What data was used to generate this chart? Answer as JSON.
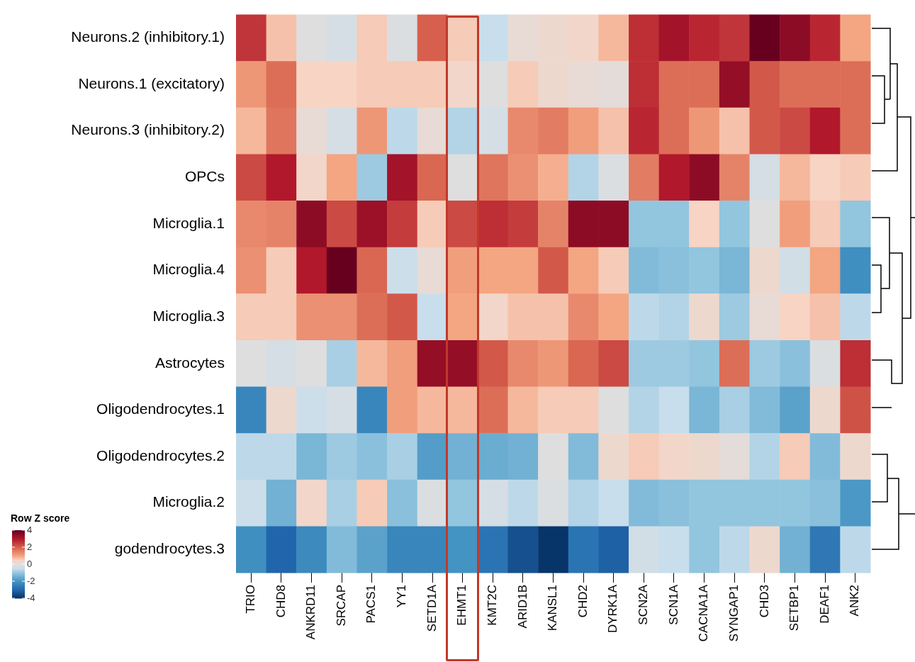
{
  "chart_data": {
    "type": "heatmap",
    "clabel": "Row Z score",
    "clim": [
      -4,
      4
    ],
    "cticks": [
      4,
      2,
      0,
      -2,
      -4
    ],
    "categories": [
      "TRIO",
      "CHD8",
      "ANKRD11",
      "SRCAP",
      "PACS1",
      "YY1",
      "SETD1A",
      "EHMT1",
      "KMT2C",
      "ARID1B",
      "KANSL1",
      "CHD2",
      "DYRK1A",
      "SCN2A",
      "SCN1A",
      "CACNA1A",
      "SYNGAP1",
      "CHD3",
      "SETBP1",
      "DEAF1",
      "ANK2"
    ],
    "y_categories": [
      "Neurons.2 (inhibitory.1)",
      "Neurons.1 (excitatory)",
      "Neurons.3 (inhibitory.2)",
      "OPCs",
      "Microglia.1",
      "Microglia.4",
      "Microglia.3",
      "Astrocytes",
      "Oligodendrocytes.1",
      "Oligodendrocytes.2",
      "Microglia.2",
      "godendrocytes.3"
    ],
    "cells": [
      [
        2.6,
        0.7,
        0,
        -0.2,
        0.6,
        -0.1,
        2.0,
        0.6,
        -0.5,
        0.2,
        0.3,
        0.4,
        0.8,
        2.7,
        3.2,
        2.8,
        2.6,
        4.0,
        3.5,
        2.8,
        1.0
      ],
      [
        1.2,
        1.8,
        0.5,
        0.5,
        0.6,
        0.6,
        0.6,
        0.4,
        0,
        0.6,
        0.3,
        0.2,
        0.1,
        2.7,
        1.8,
        1.8,
        3.4,
        2.1,
        1.8,
        1.8,
        1.8
      ],
      [
        0.8,
        1.7,
        0.2,
        -0.2,
        1.2,
        -0.6,
        0.2,
        -0.7,
        -0.2,
        1.4,
        1.6,
        1.1,
        0.7,
        2.8,
        1.8,
        1.2,
        0.7,
        2.1,
        2.3,
        3.0,
        1.8
      ],
      [
        2.3,
        3.0,
        0.4,
        1.0,
        -0.9,
        3.2,
        1.9,
        0,
        1.7,
        1.3,
        0.9,
        -0.7,
        -0.1,
        1.6,
        3.0,
        3.5,
        1.5,
        -0.2,
        0.8,
        0.5,
        0.6
      ],
      [
        1.4,
        1.5,
        3.5,
        2.3,
        3.3,
        2.5,
        0.6,
        2.3,
        2.7,
        2.5,
        1.5,
        3.5,
        3.5,
        -1.0,
        -1.0,
        0.5,
        -1.0,
        0,
        1.1,
        0.6,
        -1.0
      ],
      [
        1.3,
        0.6,
        3.0,
        4.0,
        1.9,
        -0.4,
        0.2,
        1.1,
        1.0,
        1.0,
        2.1,
        1.0,
        0.6,
        -1.2,
        -1.1,
        -1.0,
        -1.3,
        0.3,
        -0.3,
        1.0,
        -2.1
      ],
      [
        0.6,
        0.6,
        1.3,
        1.3,
        1.8,
        2.1,
        -0.5,
        1.0,
        0.4,
        0.7,
        0.7,
        1.4,
        1.0,
        -0.6,
        -0.7,
        0.3,
        -0.9,
        0.2,
        0.5,
        0.7,
        -0.6
      ],
      [
        0,
        -0.2,
        0,
        -0.8,
        0.8,
        1.1,
        3.4,
        3.4,
        2.1,
        1.4,
        1.2,
        1.9,
        2.3,
        -0.9,
        -0.9,
        -1.0,
        1.8,
        -0.9,
        -1.1,
        -0.1,
        2.7
      ],
      [
        -2.3,
        0.3,
        -0.4,
        -0.2,
        -2.3,
        1.1,
        0.8,
        0.8,
        1.8,
        0.8,
        0.6,
        0.6,
        0,
        -0.7,
        -0.5,
        -1.3,
        -0.8,
        -1.2,
        -1.7,
        0.3,
        2.2
      ],
      [
        -0.6,
        -0.6,
        -1.3,
        -0.9,
        -1.1,
        -0.8,
        -1.8,
        -1.4,
        -1.5,
        -1.4,
        0,
        -1.2,
        0.3,
        0.6,
        0.4,
        0.3,
        0.1,
        -0.7,
        0.6,
        -1.2,
        0.3
      ],
      [
        -0.4,
        -1.4,
        0.4,
        -0.8,
        0.6,
        -1.1,
        -0.1,
        -1.0,
        -0.2,
        -0.6,
        -0.1,
        -0.7,
        -0.5,
        -1.2,
        -1.1,
        -1.0,
        -1.0,
        -1.0,
        -1.0,
        -1.1,
        -1.9
      ],
      [
        -2.1,
        -3.0,
        -2.2,
        -1.2,
        -1.7,
        -2.3,
        -2.3,
        -2.0,
        -2.7,
        -3.4,
        -3.9,
        -2.7,
        -3.1,
        -0.3,
        -0.5,
        -1.0,
        -0.6,
        0.3,
        -1.4,
        -2.6,
        -0.6
      ]
    ]
  }
}
